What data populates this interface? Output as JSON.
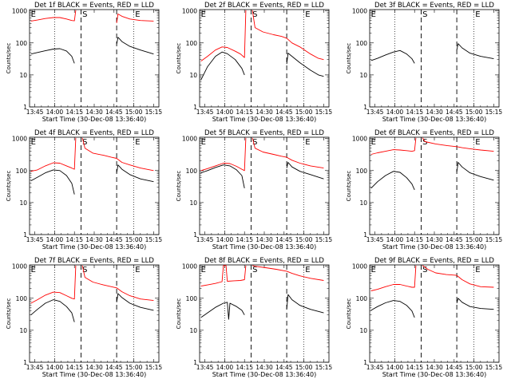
{
  "chart_data": {
    "type": "line",
    "common": {
      "xlabel": "Start Time (30-Dec-08 13:36:40)",
      "ylabel": "Counts/sec",
      "xticks": [
        "13:45",
        "14:00",
        "14:15",
        "14:30",
        "14:45",
        "15:00",
        "15:15"
      ],
      "xtick_minutes": [
        0,
        15,
        30,
        45,
        60,
        75,
        90
      ],
      "xlim": [
        -4,
        94
      ],
      "yticks": [
        "1",
        "10",
        "100",
        "1000"
      ],
      "ylim": [
        1,
        1100
      ],
      "yscale": "log",
      "dotted_lines_x": [
        15,
        75
      ],
      "dashed_lines_x": [
        35,
        62
      ],
      "marker_labels": [
        {
          "text": "E",
          "x": -3
        },
        {
          "text": "S",
          "x": 36
        },
        {
          "text": "E",
          "x": 76
        }
      ],
      "colors": {
        "events": "#000000",
        "lld": "#ff0000"
      }
    },
    "panels": [
      {
        "title": "Det 1f BLACK = Events, RED = LLD",
        "has_lld": true,
        "events": [
          [
            -3,
            45
          ],
          [
            2,
            50
          ],
          [
            8,
            57
          ],
          [
            14,
            64
          ],
          [
            19,
            66
          ],
          [
            24,
            56
          ],
          [
            28,
            38
          ],
          [
            30,
            23
          ],
          null,
          [
            62,
            90
          ],
          [
            63,
            150
          ],
          [
            66,
            110
          ],
          [
            72,
            78
          ],
          [
            80,
            60
          ],
          [
            90,
            45
          ]
        ],
        "lld": [
          [
            -3,
            480
          ],
          [
            2,
            520
          ],
          [
            8,
            580
          ],
          [
            14,
            620
          ],
          [
            19,
            620
          ],
          [
            24,
            560
          ],
          [
            28,
            500
          ],
          [
            30,
            490
          ],
          [
            31,
            1050
          ],
          null,
          [
            62,
            420
          ],
          [
            63,
            800
          ],
          [
            66,
            680
          ],
          [
            72,
            560
          ],
          [
            80,
            500
          ],
          [
            90,
            480
          ]
        ]
      },
      {
        "title": "Det 2f BLACK = Events, RED = LLD",
        "has_lld": true,
        "events": [
          [
            -3,
            7
          ],
          [
            2,
            18
          ],
          [
            8,
            38
          ],
          [
            13,
            52
          ],
          [
            17,
            46
          ],
          [
            23,
            30
          ],
          [
            28,
            16
          ],
          [
            30,
            10
          ],
          null,
          [
            62,
            22
          ],
          [
            63,
            48
          ],
          [
            66,
            38
          ],
          [
            72,
            24
          ],
          [
            80,
            14
          ],
          [
            86,
            10
          ],
          [
            90,
            9
          ]
        ],
        "lld": [
          [
            -3,
            27
          ],
          [
            2,
            38
          ],
          [
            8,
            60
          ],
          [
            13,
            75
          ],
          [
            17,
            72
          ],
          [
            23,
            55
          ],
          [
            27,
            45
          ],
          [
            30,
            35
          ],
          [
            31,
            1050
          ],
          null,
          [
            36,
            1050
          ],
          [
            38,
            300
          ],
          [
            44,
            220
          ],
          [
            52,
            180
          ],
          [
            58,
            160
          ],
          [
            62,
            140
          ],
          [
            66,
            100
          ],
          [
            72,
            75
          ],
          [
            80,
            45
          ],
          [
            86,
            33
          ],
          [
            90,
            30
          ]
        ]
      },
      {
        "title": "Det 3f BLACK = Events, RED = LLD",
        "has_lld": false,
        "events": [
          [
            -3,
            28
          ],
          [
            2,
            33
          ],
          [
            8,
            42
          ],
          [
            14,
            52
          ],
          [
            19,
            58
          ],
          [
            24,
            45
          ],
          [
            28,
            32
          ],
          [
            30,
            23
          ],
          null,
          [
            62,
            60
          ],
          [
            63,
            95
          ],
          [
            66,
            70
          ],
          [
            72,
            48
          ],
          [
            80,
            38
          ],
          [
            90,
            32
          ]
        ],
        "lld": []
      },
      {
        "title": "Det 4f BLACK = Events, RED = LLD",
        "has_lld": true,
        "events": [
          [
            -3,
            48
          ],
          [
            2,
            62
          ],
          [
            8,
            85
          ],
          [
            14,
            105
          ],
          [
            19,
            100
          ],
          [
            24,
            70
          ],
          [
            28,
            40
          ],
          [
            30,
            18
          ],
          null,
          [
            62,
            85
          ],
          [
            63,
            150
          ],
          [
            66,
            110
          ],
          [
            72,
            75
          ],
          [
            80,
            55
          ],
          [
            90,
            45
          ]
        ],
        "lld": [
          [
            -3,
            95
          ],
          [
            2,
            105
          ],
          [
            8,
            140
          ],
          [
            14,
            175
          ],
          [
            19,
            170
          ],
          [
            24,
            140
          ],
          [
            28,
            120
          ],
          [
            30,
            110
          ],
          [
            31,
            1050
          ],
          null,
          [
            36,
            1050
          ],
          [
            38,
            500
          ],
          [
            44,
            350
          ],
          [
            52,
            300
          ],
          [
            58,
            260
          ],
          [
            62,
            240
          ],
          [
            66,
            180
          ],
          [
            72,
            150
          ],
          [
            80,
            120
          ],
          [
            90,
            100
          ]
        ]
      },
      {
        "title": "Det 5f BLACK = Events, RED = LLD",
        "has_lld": true,
        "events": [
          [
            -3,
            85
          ],
          [
            2,
            100
          ],
          [
            8,
            125
          ],
          [
            14,
            150
          ],
          [
            19,
            140
          ],
          [
            24,
            105
          ],
          [
            28,
            70
          ],
          [
            30,
            28
          ],
          null,
          [
            62,
            120
          ],
          [
            63,
            180
          ],
          [
            66,
            130
          ],
          [
            72,
            95
          ],
          [
            80,
            75
          ],
          [
            90,
            55
          ]
        ],
        "lld": [
          [
            -3,
            100
          ],
          [
            2,
            115
          ],
          [
            8,
            140
          ],
          [
            14,
            170
          ],
          [
            19,
            165
          ],
          [
            24,
            135
          ],
          [
            28,
            110
          ],
          [
            30,
            100
          ],
          [
            31,
            1050
          ],
          null,
          [
            36,
            1050
          ],
          [
            38,
            500
          ],
          [
            44,
            380
          ],
          [
            52,
            320
          ],
          [
            58,
            280
          ],
          [
            62,
            260
          ],
          [
            66,
            210
          ],
          [
            72,
            170
          ],
          [
            80,
            140
          ],
          [
            90,
            120
          ]
        ]
      },
      {
        "title": "Det 6f BLACK = Events, RED = LLD",
        "has_lld": true,
        "events": [
          [
            -3,
            28
          ],
          [
            2,
            45
          ],
          [
            8,
            70
          ],
          [
            14,
            95
          ],
          [
            19,
            88
          ],
          [
            24,
            60
          ],
          [
            28,
            38
          ],
          [
            30,
            25
          ],
          null,
          [
            62,
            90
          ],
          [
            63,
            180
          ],
          [
            66,
            130
          ],
          [
            72,
            85
          ],
          [
            80,
            65
          ],
          [
            90,
            50
          ]
        ],
        "lld": [
          [
            -3,
            320
          ],
          [
            2,
            360
          ],
          [
            8,
            400
          ],
          [
            14,
            450
          ],
          [
            19,
            440
          ],
          [
            24,
            420
          ],
          [
            28,
            400
          ],
          [
            30,
            420
          ],
          [
            31,
            1050
          ],
          null,
          [
            36,
            1050
          ],
          [
            38,
            800
          ],
          [
            46,
            680
          ],
          [
            55,
            600
          ],
          [
            62,
            560
          ],
          [
            66,
            520
          ],
          [
            72,
            480
          ],
          [
            80,
            440
          ],
          [
            90,
            400
          ]
        ]
      },
      {
        "title": "Det 7f BLACK = Events, RED = LLD",
        "has_lld": true,
        "events": [
          [
            -3,
            30
          ],
          [
            2,
            45
          ],
          [
            8,
            70
          ],
          [
            14,
            90
          ],
          [
            19,
            80
          ],
          [
            24,
            55
          ],
          [
            28,
            35
          ],
          [
            30,
            18
          ],
          null,
          [
            62,
            75
          ],
          [
            63,
            140
          ],
          [
            66,
            105
          ],
          [
            72,
            70
          ],
          [
            80,
            52
          ],
          [
            90,
            42
          ]
        ],
        "lld": [
          [
            -3,
            70
          ],
          [
            2,
            90
          ],
          [
            8,
            125
          ],
          [
            14,
            155
          ],
          [
            19,
            150
          ],
          [
            24,
            120
          ],
          [
            28,
            100
          ],
          [
            30,
            95
          ],
          [
            31,
            1050
          ],
          null,
          [
            36,
            1050
          ],
          [
            38,
            450
          ],
          [
            44,
            320
          ],
          [
            52,
            260
          ],
          [
            58,
            230
          ],
          [
            62,
            210
          ],
          [
            66,
            160
          ],
          [
            72,
            120
          ],
          [
            80,
            95
          ],
          [
            90,
            85
          ]
        ]
      },
      {
        "title": "Det 8f BLACK = Events, RED = LLD",
        "has_lld": true,
        "events": [
          [
            -3,
            25
          ],
          [
            2,
            35
          ],
          [
            8,
            52
          ],
          [
            14,
            70
          ],
          [
            17,
            75
          ],
          [
            18,
            22
          ],
          [
            19,
            70
          ],
          [
            24,
            55
          ],
          [
            28,
            42
          ],
          [
            30,
            30
          ],
          null,
          [
            62,
            45
          ],
          [
            63,
            130
          ],
          [
            66,
            90
          ],
          [
            72,
            60
          ],
          [
            80,
            45
          ],
          [
            90,
            35
          ]
        ],
        "lld": [
          [
            -3,
            240
          ],
          [
            2,
            260
          ],
          [
            8,
            290
          ],
          [
            13,
            330
          ],
          [
            14,
            1050
          ],
          [
            16,
            1050
          ],
          [
            17,
            340
          ],
          [
            22,
            350
          ],
          [
            27,
            360
          ],
          [
            30,
            380
          ],
          [
            31,
            1050
          ],
          null,
          [
            36,
            1050
          ],
          [
            38,
            1000
          ],
          [
            46,
            900
          ],
          [
            54,
            800
          ],
          [
            62,
            700
          ],
          [
            66,
            600
          ],
          [
            72,
            500
          ],
          [
            80,
            420
          ],
          [
            90,
            360
          ]
        ]
      },
      {
        "title": "Det 9f BLACK = Events, RED = LLD",
        "has_lld": true,
        "events": [
          [
            -3,
            42
          ],
          [
            2,
            55
          ],
          [
            8,
            72
          ],
          [
            14,
            85
          ],
          [
            19,
            80
          ],
          [
            24,
            60
          ],
          [
            28,
            40
          ],
          [
            30,
            25
          ],
          null,
          [
            62,
            70
          ],
          [
            63,
            100
          ],
          [
            66,
            75
          ],
          [
            72,
            55
          ],
          [
            80,
            48
          ],
          [
            90,
            45
          ]
        ],
        "lld": [
          [
            -3,
            170
          ],
          [
            2,
            190
          ],
          [
            8,
            230
          ],
          [
            14,
            270
          ],
          [
            19,
            270
          ],
          [
            24,
            240
          ],
          [
            28,
            220
          ],
          [
            30,
            220
          ],
          [
            31,
            1050
          ],
          null,
          [
            36,
            1050
          ],
          [
            40,
            800
          ],
          [
            46,
            620
          ],
          [
            54,
            550
          ],
          [
            62,
            520
          ],
          [
            66,
            380
          ],
          [
            72,
            280
          ],
          [
            80,
            230
          ],
          [
            90,
            220
          ]
        ]
      }
    ]
  }
}
